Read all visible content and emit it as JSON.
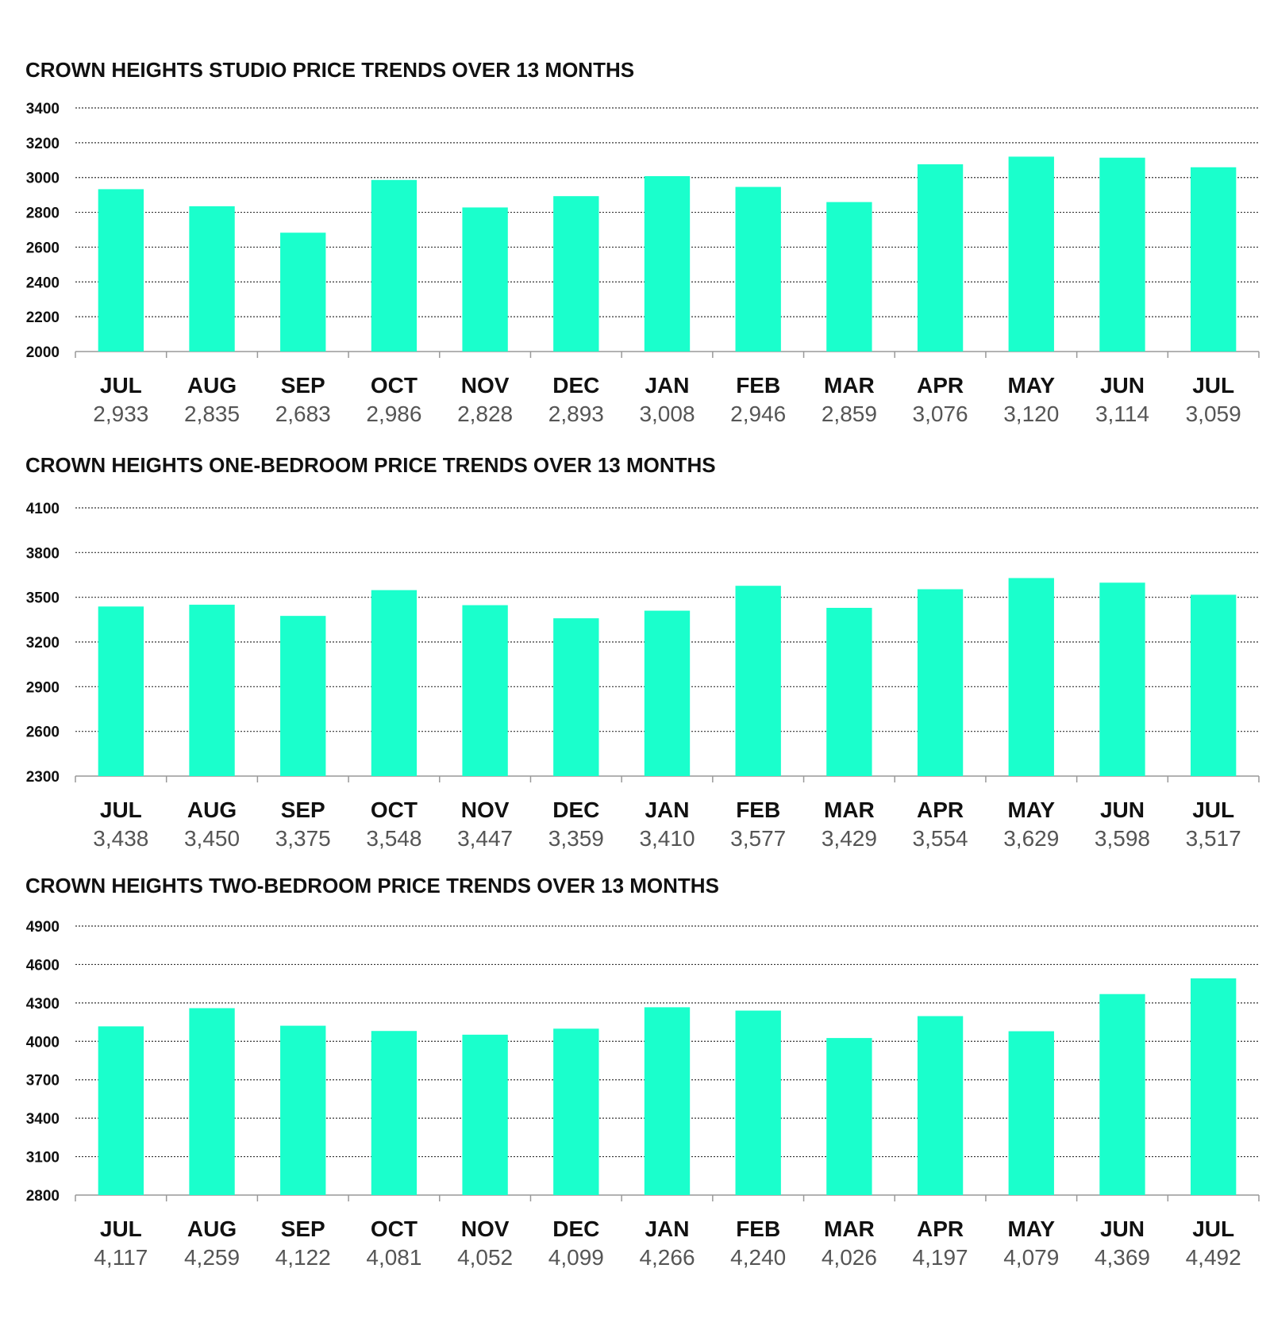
{
  "colors": {
    "bar": "#1affcc",
    "text": "#111111",
    "value_text": "#555555"
  },
  "chart_data": [
    {
      "type": "bar",
      "title": "CROWN HEIGHTS STUDIO PRICE TRENDS OVER 13 MONTHS",
      "categories": [
        "JUL",
        "AUG",
        "SEP",
        "OCT",
        "NOV",
        "DEC",
        "JAN",
        "FEB",
        "MAR",
        "APR",
        "MAY",
        "JUN",
        "JUL"
      ],
      "values": [
        2933,
        2835,
        2683,
        2986,
        2828,
        2893,
        3008,
        2946,
        2859,
        3076,
        3120,
        3114,
        3059
      ],
      "value_labels": [
        "2,933",
        "2,835",
        "2,683",
        "2,986",
        "2,828",
        "2,893",
        "3,008",
        "2,946",
        "2,859",
        "3,076",
        "3,120",
        "3,114",
        "3,059"
      ],
      "yticks": [
        "2000",
        "2200",
        "2400",
        "2600",
        "2800",
        "3000",
        "3200",
        "3400"
      ],
      "ylim": [
        2000,
        3400
      ],
      "grid": true,
      "legend": "none"
    },
    {
      "type": "bar",
      "title": "CROWN HEIGHTS ONE-BEDROOM PRICE TRENDS OVER 13 MONTHS",
      "categories": [
        "JUL",
        "AUG",
        "SEP",
        "OCT",
        "NOV",
        "DEC",
        "JAN",
        "FEB",
        "MAR",
        "APR",
        "MAY",
        "JUN",
        "JUL"
      ],
      "values": [
        3438,
        3450,
        3375,
        3548,
        3447,
        3359,
        3410,
        3577,
        3429,
        3554,
        3629,
        3598,
        3517
      ],
      "value_labels": [
        "3,438",
        "3,450",
        "3,375",
        "3,548",
        "3,447",
        "3,359",
        "3,410",
        "3,577",
        "3,429",
        "3,554",
        "3,629",
        "3,598",
        "3,517"
      ],
      "yticks": [
        "2300",
        "2600",
        "2900",
        "3200",
        "3500",
        "3800",
        "4100"
      ],
      "ylim": [
        2300,
        4100
      ],
      "grid": true,
      "legend": "none"
    },
    {
      "type": "bar",
      "title": "CROWN HEIGHTS TWO-BEDROOM PRICE TRENDS OVER 13 MONTHS",
      "categories": [
        "JUL",
        "AUG",
        "SEP",
        "OCT",
        "NOV",
        "DEC",
        "JAN",
        "FEB",
        "MAR",
        "APR",
        "MAY",
        "JUN",
        "JUL"
      ],
      "values": [
        4117,
        4259,
        4122,
        4081,
        4052,
        4099,
        4266,
        4240,
        4026,
        4197,
        4079,
        4369,
        4492
      ],
      "value_labels": [
        "4,117",
        "4,259",
        "4,122",
        "4,081",
        "4,052",
        "4,099",
        "4,266",
        "4,240",
        "4,026",
        "4,197",
        "4,079",
        "4,369",
        "4,492"
      ],
      "yticks": [
        "2800",
        "3100",
        "3400",
        "3700",
        "4000",
        "4300",
        "4600",
        "4900"
      ],
      "ylim": [
        2800,
        4900
      ],
      "grid": true,
      "legend": "none"
    }
  ]
}
